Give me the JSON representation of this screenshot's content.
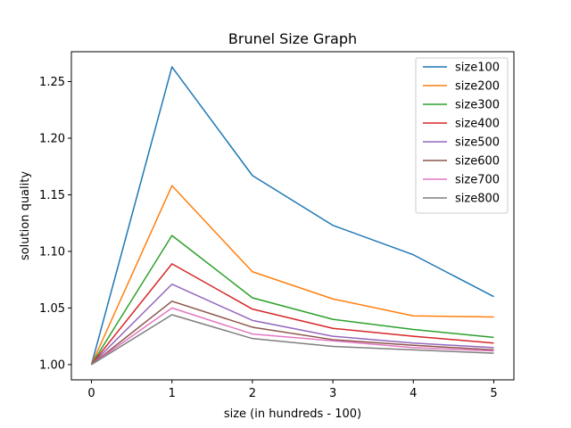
{
  "chart_data": {
    "type": "line",
    "title": "Brunel Size Graph",
    "xlabel": "size (in hundreds - 100)",
    "ylabel": "solution quality",
    "x": [
      0,
      1,
      2,
      3,
      4,
      5
    ],
    "xlim": [
      -0.25,
      5.25
    ],
    "ylim": [
      0.9865,
      1.2764
    ],
    "xticks": [
      0,
      1,
      2,
      3,
      4,
      5
    ],
    "yticks": [
      1.0,
      1.05,
      1.1,
      1.15,
      1.2,
      1.25
    ],
    "ytick_labels": [
      "1.00",
      "1.05",
      "1.10",
      "1.15",
      "1.20",
      "1.25"
    ],
    "grid": false,
    "legend_position": "top-right",
    "series": [
      {
        "name": "size100",
        "color": "#1f77b4",
        "values": [
          1.0,
          1.263,
          1.167,
          1.123,
          1.097,
          1.06
        ]
      },
      {
        "name": "size200",
        "color": "#ff7f0e",
        "values": [
          1.0,
          1.158,
          1.082,
          1.058,
          1.043,
          1.042
        ]
      },
      {
        "name": "size300",
        "color": "#2ca02c",
        "values": [
          1.0,
          1.114,
          1.059,
          1.04,
          1.031,
          1.024
        ]
      },
      {
        "name": "size400",
        "color": "#d62728",
        "values": [
          1.0,
          1.089,
          1.049,
          1.032,
          1.025,
          1.019
        ]
      },
      {
        "name": "size500",
        "color": "#9467bd",
        "values": [
          1.0,
          1.071,
          1.039,
          1.025,
          1.019,
          1.015
        ]
      },
      {
        "name": "size600",
        "color": "#8c564b",
        "values": [
          1.0,
          1.056,
          1.033,
          1.022,
          1.017,
          1.013
        ]
      },
      {
        "name": "size700",
        "color": "#e377c2",
        "values": [
          1.0,
          1.05,
          1.027,
          1.021,
          1.015,
          1.012
        ]
      },
      {
        "name": "size800",
        "color": "#7f7f7f",
        "values": [
          1.0,
          1.044,
          1.023,
          1.016,
          1.013,
          1.01
        ]
      }
    ]
  }
}
